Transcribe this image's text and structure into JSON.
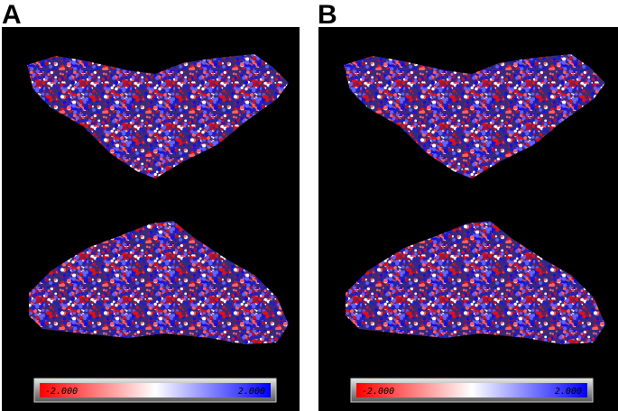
{
  "panels": [
    {
      "label": "A",
      "colorbar": {
        "min_label": "-2.000",
        "max_label": "2.000"
      }
    },
    {
      "label": "B",
      "colorbar": {
        "min_label": "-2.000",
        "max_label": "2.000"
      }
    }
  ]
}
